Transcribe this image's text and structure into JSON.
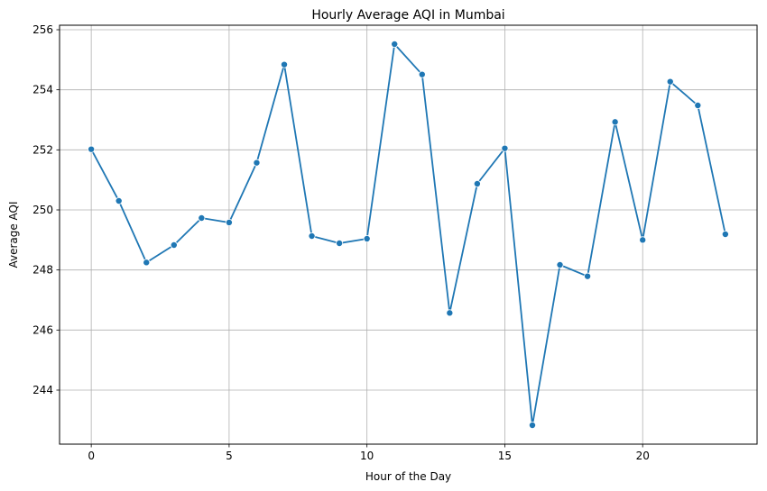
{
  "chart_data": {
    "type": "line",
    "title": "Hourly Average AQI in Mumbai",
    "xlabel": "Hour of the Day",
    "ylabel": "Average AQI",
    "xlim": [
      -1.15,
      24.15
    ],
    "ylim": [
      242.2,
      256.15
    ],
    "xticks": [
      0,
      5,
      10,
      15,
      20
    ],
    "yticks": [
      244,
      246,
      248,
      250,
      252,
      254,
      256
    ],
    "grid": true,
    "marker": "circle",
    "color": "#1f77b4",
    "x": [
      0,
      1,
      2,
      3,
      4,
      5,
      6,
      7,
      8,
      9,
      10,
      11,
      12,
      13,
      14,
      15,
      16,
      17,
      18,
      19,
      20,
      21,
      22,
      23
    ],
    "series": [
      {
        "values": [
          252.02,
          250.3,
          248.25,
          248.83,
          249.73,
          249.58,
          251.57,
          254.84,
          249.13,
          248.89,
          249.04,
          255.52,
          254.51,
          246.57,
          250.87,
          252.05,
          242.83,
          248.17,
          247.79,
          252.93,
          249.0,
          254.27,
          253.48,
          249.19
        ]
      }
    ]
  }
}
